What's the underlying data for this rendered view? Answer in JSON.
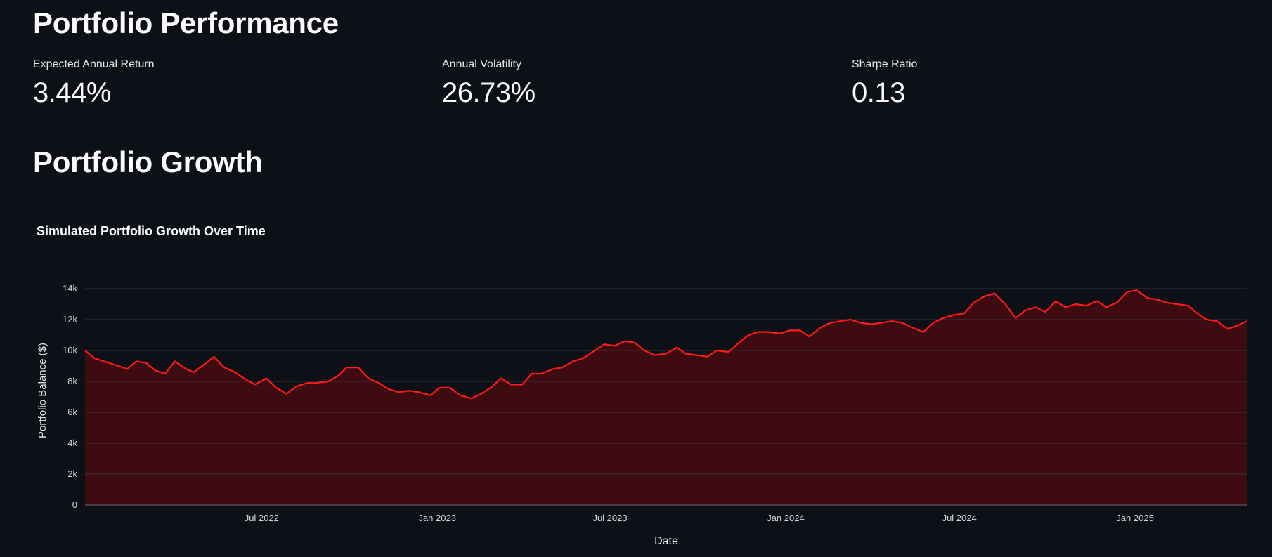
{
  "page": {
    "performance_title": "Portfolio Performance",
    "growth_title": "Portfolio Growth"
  },
  "metrics": [
    {
      "label": "Expected Annual Return",
      "value": "3.44%"
    },
    {
      "label": "Annual Volatility",
      "value": "26.73%"
    },
    {
      "label": "Sharpe Ratio",
      "value": "0.13"
    }
  ],
  "colors": {
    "background": "#0e1017",
    "line": "#ff1a1a",
    "area": "#3d0b10",
    "grid": "#3a3c44",
    "text": "#fafafa",
    "tick": "#d6d6dc"
  },
  "chart_data": {
    "type": "area",
    "title": "Simulated Portfolio Growth Over Time",
    "xlabel": "Date",
    "ylabel": "Portfolio Balance ($)",
    "ylim": [
      0,
      14000
    ],
    "yticks": [
      0,
      2000,
      4000,
      6000,
      8000,
      10000,
      12000,
      14000
    ],
    "ytick_labels": [
      "0",
      "2k",
      "4k",
      "6k",
      "8k",
      "10k",
      "12k",
      "14k"
    ],
    "xlim": [
      "2021-12-28",
      "2025-04-28"
    ],
    "xticks": [
      "2022-07-01",
      "2023-01-01",
      "2023-07-01",
      "2024-01-01",
      "2024-07-01",
      "2025-01-01"
    ],
    "xtick_labels": [
      "Jul 2022",
      "Jan 2023",
      "Jul 2023",
      "Jan 2024",
      "Jul 2024",
      "Jan 2025"
    ],
    "grid": true,
    "legend": false,
    "series": [
      {
        "x": [
          "2021-12-28",
          "2022-01-07",
          "2022-01-17",
          "2022-02-01",
          "2022-02-10",
          "2022-02-20",
          "2022-03-02",
          "2022-03-12",
          "2022-03-22",
          "2022-04-01",
          "2022-04-13",
          "2022-04-21",
          "2022-05-04",
          "2022-05-12",
          "2022-05-23",
          "2022-06-03",
          "2022-06-15",
          "2022-06-24",
          "2022-07-06",
          "2022-07-16",
          "2022-07-27",
          "2022-08-07",
          "2022-08-18",
          "2022-08-27",
          "2022-09-09",
          "2022-09-20",
          "2022-09-28",
          "2022-10-10",
          "2022-10-21",
          "2022-11-01",
          "2022-11-11",
          "2022-11-22",
          "2022-12-02",
          "2022-12-13",
          "2022-12-25",
          "2023-01-03",
          "2023-01-14",
          "2023-01-25",
          "2023-02-06",
          "2023-02-16",
          "2023-02-26",
          "2023-03-09",
          "2023-03-19",
          "2023-03-31",
          "2023-04-10",
          "2023-04-20",
          "2023-05-02",
          "2023-05-12",
          "2023-05-23",
          "2023-06-03",
          "2023-06-15",
          "2023-06-25",
          "2023-07-06",
          "2023-07-16",
          "2023-07-27",
          "2023-08-06",
          "2023-08-17",
          "2023-08-29",
          "2023-09-09",
          "2023-09-18",
          "2023-09-30",
          "2023-10-11",
          "2023-10-21",
          "2023-11-02",
          "2023-11-11",
          "2023-11-23",
          "2023-12-03",
          "2023-12-14",
          "2023-12-26",
          "2024-01-05",
          "2024-01-16",
          "2024-01-26",
          "2024-02-07",
          "2024-02-17",
          "2024-02-27",
          "2024-03-09",
          "2024-03-19",
          "2024-03-31",
          "2024-04-11",
          "2024-04-21",
          "2024-05-02",
          "2024-05-12",
          "2024-05-24",
          "2024-06-04",
          "2024-06-14",
          "2024-06-25",
          "2024-07-06",
          "2024-07-16",
          "2024-07-27",
          "2024-08-07",
          "2024-08-18",
          "2024-08-29",
          "2024-09-08",
          "2024-09-19",
          "2024-09-29",
          "2024-10-10",
          "2024-10-20",
          "2024-10-31",
          "2024-11-11",
          "2024-11-22",
          "2024-12-02",
          "2024-12-13",
          "2024-12-24",
          "2025-01-03",
          "2025-01-14",
          "2025-01-24",
          "2025-02-03",
          "2025-02-14",
          "2025-02-26",
          "2025-03-07",
          "2025-03-17",
          "2025-03-28",
          "2025-04-08",
          "2025-04-18",
          "2025-04-28"
        ],
        "y": [
          10000,
          9500,
          9300,
          9000,
          8800,
          9300,
          9200,
          8700,
          8500,
          9300,
          8800,
          8600,
          9200,
          9600,
          8900,
          8600,
          8100,
          7800,
          8200,
          7600,
          7200,
          7700,
          7900,
          7900,
          8000,
          8400,
          8900,
          8900,
          8200,
          7900,
          7500,
          7300,
          7400,
          7300,
          7100,
          7600,
          7600,
          7100,
          6900,
          7200,
          7600,
          8200,
          7800,
          7800,
          8500,
          8500,
          8800,
          8900,
          9300,
          9500,
          10000,
          10400,
          10300,
          10600,
          10500,
          10000,
          9700,
          9800,
          10200,
          9800,
          9700,
          9600,
          10000,
          9900,
          10400,
          11000,
          11200,
          11200,
          11100,
          11300,
          11300,
          10900,
          11500,
          11800,
          11900,
          12000,
          11800,
          11700,
          11800,
          11900,
          11800,
          11500,
          11200,
          11800,
          12100,
          12300,
          12400,
          13100,
          13500,
          13700,
          13000,
          12100,
          12600,
          12800,
          12500,
          13200,
          12800,
          13000,
          12900,
          13200,
          12800,
          13100,
          13800,
          13900,
          13400,
          13300,
          13100,
          13000,
          12900,
          12400,
          12000,
          11900,
          11400,
          11600,
          11900
        ]
      }
    ]
  }
}
